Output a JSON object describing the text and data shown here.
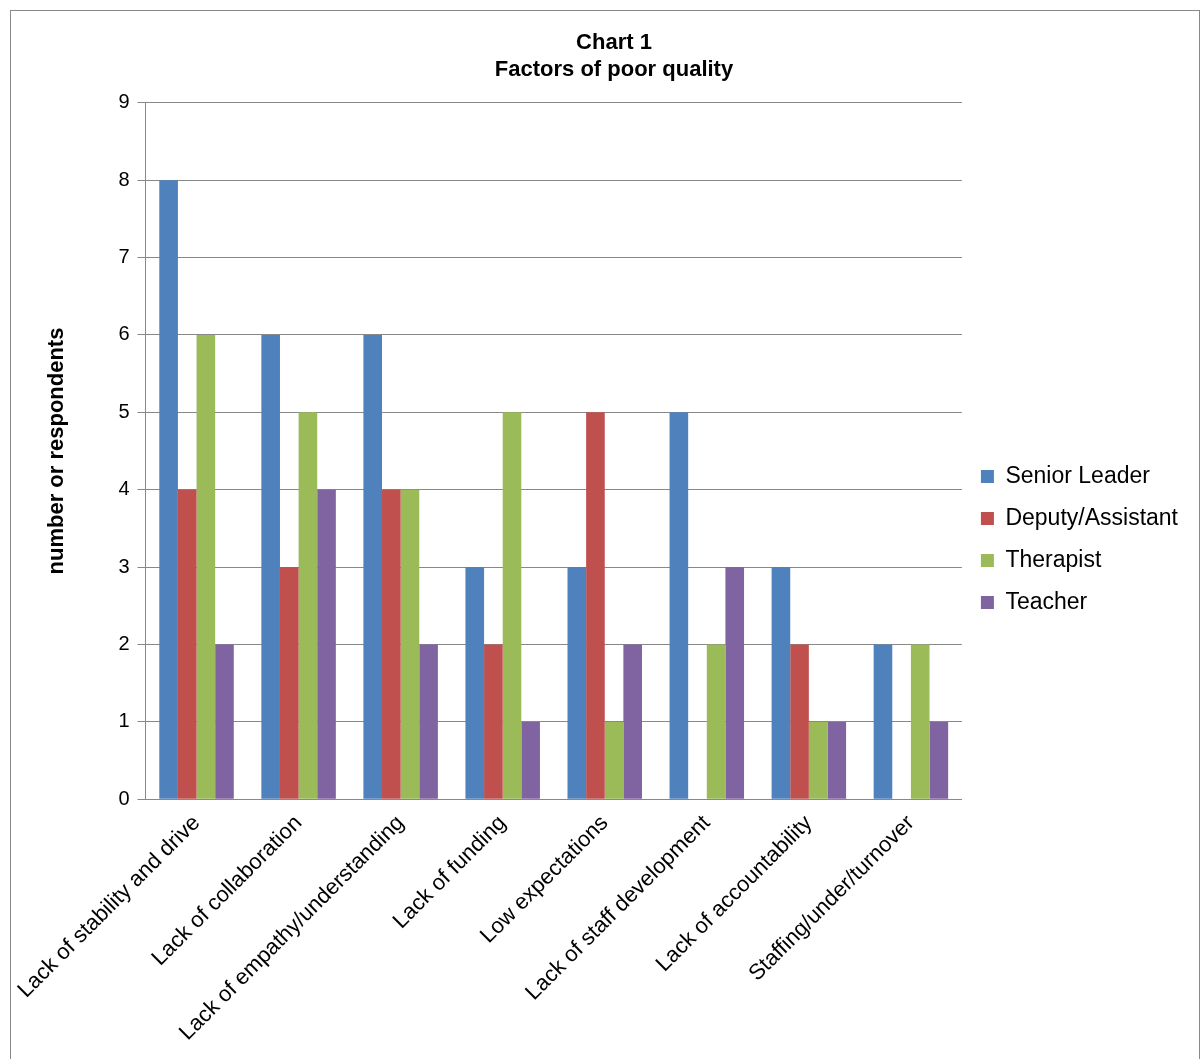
{
  "chart_data": {
    "type": "bar",
    "title": "Chart 1",
    "subtitle": "Factors of poor quality",
    "ylabel": "number or respondents",
    "categories": [
      "Lack of stability and drive",
      "Lack of collaboration",
      "Lack of empathy/understanding",
      "Lack of funding",
      "Low expectations",
      "Lack of staff development",
      "Lack of accountability",
      "Staffing/under/turnover"
    ],
    "series": [
      {
        "name": "Senior Leader",
        "color": "#4f81bd",
        "values": [
          8,
          6,
          6,
          3,
          3,
          5,
          3,
          2
        ]
      },
      {
        "name": "Deputy/Assistant",
        "color": "#c0504d",
        "values": [
          4,
          3,
          4,
          2,
          5,
          0,
          2,
          0
        ]
      },
      {
        "name": "Therapist",
        "color": "#9bbb59",
        "values": [
          6,
          5,
          4,
          5,
          1,
          2,
          1,
          2
        ]
      },
      {
        "name": "Teacher",
        "color": "#8064a2",
        "values": [
          2,
          4,
          2,
          1,
          2,
          3,
          1,
          1
        ]
      }
    ],
    "ylim": [
      0,
      9
    ],
    "yticks": [
      0,
      1,
      2,
      3,
      4,
      5,
      6,
      7,
      8,
      9
    ],
    "grid": "y",
    "legend": "right"
  }
}
